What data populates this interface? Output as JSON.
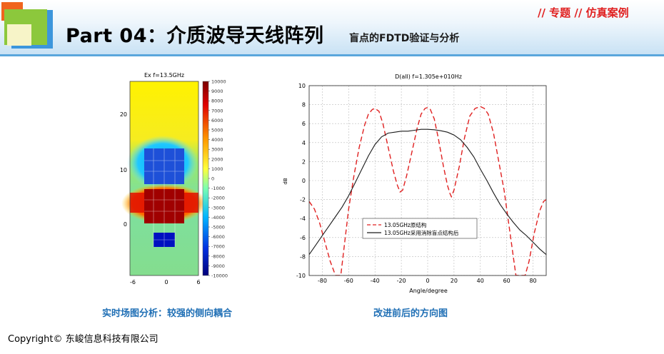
{
  "header": {
    "title": "Part 04：介质波导天线阵列",
    "subtitle": "盲点的FDTD验证与分析",
    "topic": "// 专题 // 仿真案例"
  },
  "colors": {
    "accent_blue": "#1f6fb5",
    "topic_red": "#e02020",
    "logo_orange": "#f0641e",
    "logo_green": "#8cc83c",
    "logo_blue": "#3c96dc"
  },
  "left_figure": {
    "title": "Ex  f=13.5GHz",
    "y_ticks": [
      "20",
      "10",
      "0"
    ],
    "x_ticks": [
      "-6",
      "0",
      "6"
    ],
    "colorbar_ticks": [
      "10000",
      "9000",
      "8000",
      "7000",
      "6000",
      "5000",
      "4000",
      "3000",
      "2000",
      "1000",
      "0",
      "-1000",
      "-2000",
      "-3000",
      "-4000",
      "-5000",
      "-6000",
      "-7000",
      "-8000",
      "-9000",
      "-10000"
    ],
    "caption": "实时场图分析：较强的侧向耦合"
  },
  "chart_data": {
    "type": "line",
    "title": "D(all) f=1.305e+010Hz",
    "xlabel": "Angle/degree",
    "ylabel": "dB",
    "xlim": [
      -90,
      90
    ],
    "ylim": [
      -10,
      10
    ],
    "x_ticks": [
      "-80",
      "-60",
      "-40",
      "-20",
      "0",
      "20",
      "40",
      "60",
      "80"
    ],
    "y_ticks": [
      "10",
      "8",
      "6",
      "4",
      "2",
      "0",
      "-2",
      "-4",
      "-6",
      "-8",
      "-10"
    ],
    "grid": true,
    "legend_position": "lower-center",
    "series": [
      {
        "name": "13.05GHz原结构",
        "color": "#e02020",
        "style": "dashed",
        "points": [
          [
            -90,
            -2.2
          ],
          [
            -86,
            -3
          ],
          [
            -82,
            -4.5
          ],
          [
            -78,
            -6.5
          ],
          [
            -74,
            -8.5
          ],
          [
            -70,
            -10
          ],
          [
            -66,
            -10
          ],
          [
            -63,
            -6.5
          ],
          [
            -60,
            -3
          ],
          [
            -56,
            0.5
          ],
          [
            -52,
            3.5
          ],
          [
            -48,
            5.8
          ],
          [
            -45,
            7
          ],
          [
            -42,
            7.5
          ],
          [
            -40,
            7.6
          ],
          [
            -37,
            7.3
          ],
          [
            -34,
            6
          ],
          [
            -30,
            3.5
          ],
          [
            -26,
            1
          ],
          [
            -23,
            -0.5
          ],
          [
            -21,
            -1.2
          ],
          [
            -19,
            -1
          ],
          [
            -16,
            0.5
          ],
          [
            -12,
            3
          ],
          [
            -8,
            5.5
          ],
          [
            -5,
            7
          ],
          [
            -2,
            7.6
          ],
          [
            0,
            7.7
          ],
          [
            2,
            7.5
          ],
          [
            5,
            6.5
          ],
          [
            8,
            4.5
          ],
          [
            12,
            1.5
          ],
          [
            15,
            -0.5
          ],
          [
            17,
            -1.4
          ],
          [
            18,
            -1.7
          ],
          [
            20,
            -1
          ],
          [
            24,
            1.5
          ],
          [
            28,
            4.5
          ],
          [
            32,
            6.8
          ],
          [
            36,
            7.6
          ],
          [
            40,
            7.8
          ],
          [
            43,
            7.6
          ],
          [
            46,
            7
          ],
          [
            50,
            5
          ],
          [
            54,
            2
          ],
          [
            58,
            -1
          ],
          [
            62,
            -5
          ],
          [
            65,
            -8
          ],
          [
            67,
            -10
          ],
          [
            70,
            -10
          ],
          [
            74,
            -10
          ],
          [
            77,
            -8.5
          ],
          [
            81,
            -5.5
          ],
          [
            85,
            -3.2
          ],
          [
            88,
            -2.2
          ],
          [
            90,
            -2
          ]
        ]
      },
      {
        "name": "13.05GHz采用消除盲点结构后",
        "color": "#1a1a1a",
        "style": "solid",
        "points": [
          [
            -90,
            -7.8
          ],
          [
            -85,
            -6.8
          ],
          [
            -80,
            -5.8
          ],
          [
            -75,
            -4.8
          ],
          [
            -70,
            -3.8
          ],
          [
            -65,
            -2.8
          ],
          [
            -60,
            -1.6
          ],
          [
            -55,
            -0.2
          ],
          [
            -50,
            1.2
          ],
          [
            -45,
            2.6
          ],
          [
            -40,
            3.8
          ],
          [
            -35,
            4.6
          ],
          [
            -30,
            5
          ],
          [
            -25,
            5.1
          ],
          [
            -20,
            5.2
          ],
          [
            -15,
            5.2
          ],
          [
            -10,
            5.3
          ],
          [
            -5,
            5.4
          ],
          [
            0,
            5.4
          ],
          [
            5,
            5.35
          ],
          [
            10,
            5.25
          ],
          [
            15,
            5.1
          ],
          [
            20,
            4.8
          ],
          [
            25,
            4.3
          ],
          [
            30,
            3.5
          ],
          [
            35,
            2.5
          ],
          [
            40,
            1.2
          ],
          [
            45,
            0
          ],
          [
            50,
            -1.3
          ],
          [
            55,
            -2.5
          ],
          [
            60,
            -3.5
          ],
          [
            65,
            -4.4
          ],
          [
            70,
            -5.2
          ],
          [
            75,
            -5.8
          ],
          [
            80,
            -6.5
          ],
          [
            85,
            -7.2
          ],
          [
            90,
            -7.8
          ]
        ]
      }
    ],
    "caption": "改进前后的方向图"
  },
  "footer": {
    "copyright": "Copyright© 东峻信息科技有限公司"
  }
}
